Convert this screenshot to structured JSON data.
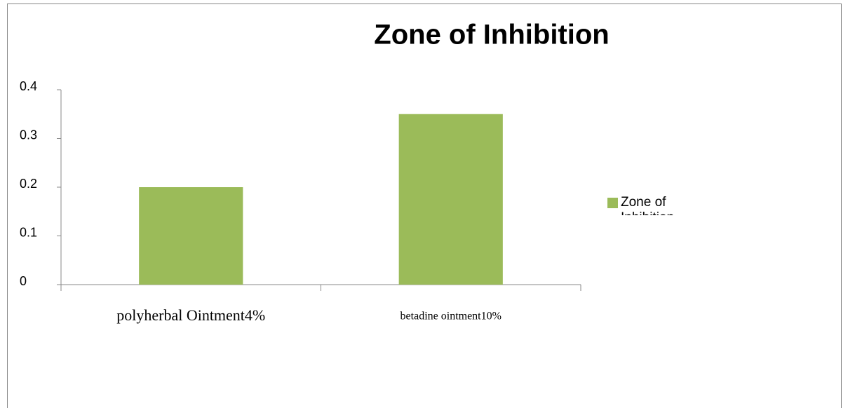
{
  "chart_data": {
    "type": "bar",
    "title": "Zone of Inhibition",
    "categories": [
      "polyherbal Ointment4%",
      "betadine ointment10%"
    ],
    "series": [
      {
        "name": "Zone of Inhibition",
        "color": "#9bbb59",
        "values": [
          0.2,
          0.35
        ]
      }
    ],
    "ylim": [
      0,
      0.4
    ],
    "yticks": [
      0,
      0.1,
      0.2,
      0.3,
      0.4
    ],
    "grid": false,
    "legend": "right"
  }
}
